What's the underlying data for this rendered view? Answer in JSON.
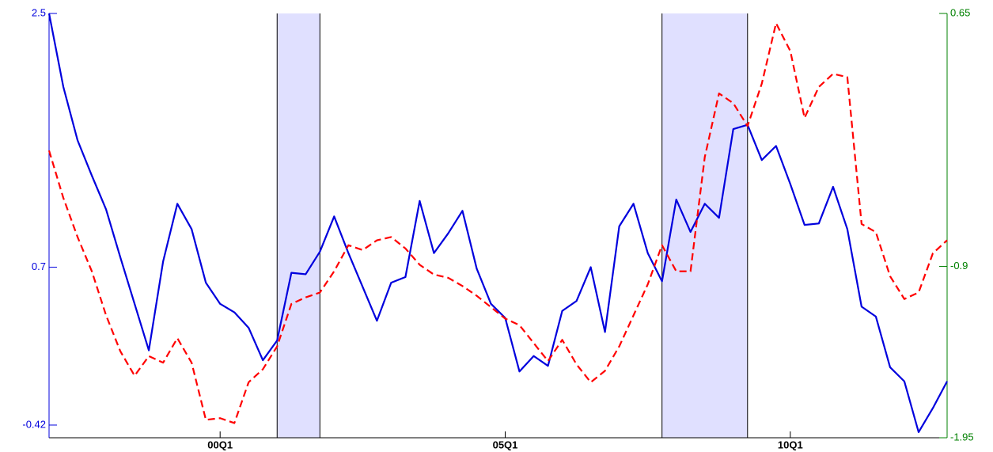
{
  "chart_data": {
    "type": "line",
    "x": [
      1997,
      1997.25,
      1997.5,
      1997.75,
      1998,
      1998.25,
      1998.5,
      1998.75,
      1999,
      1999.25,
      1999.5,
      1999.75,
      2000,
      2000.25,
      2000.5,
      2000.75,
      2001,
      2001.25,
      2001.5,
      2001.75,
      2002,
      2002.25,
      2002.5,
      2002.75,
      2003,
      2003.25,
      2003.5,
      2003.75,
      2004,
      2004.25,
      2004.5,
      2004.75,
      2005,
      2005.25,
      2005.5,
      2005.75,
      2006,
      2006.25,
      2006.5,
      2006.75,
      2007,
      2007.25,
      2007.5,
      2007.75,
      2008,
      2008.25,
      2008.5,
      2008.75,
      2009,
      2009.25,
      2009.5,
      2009.75,
      2010,
      2010.25,
      2010.5,
      2010.75,
      2011,
      2011.25,
      2011.5,
      2011.75,
      2012,
      2012.25,
      2012.5,
      2012.75
    ],
    "series": [
      {
        "color": "#0000dd",
        "axis": "y",
        "dashed": false,
        "values": [
          2.5,
          1.98,
          1.6,
          1.35,
          1.11,
          0.77,
          0.44,
          0.11,
          0.74,
          1.15,
          0.97,
          0.59,
          0.44,
          0.38,
          0.27,
          0.04,
          0.18,
          0.66,
          0.65,
          0.81,
          1.06,
          0.8,
          0.56,
          0.32,
          0.59,
          0.63,
          1.17,
          0.8,
          0.94,
          1.1,
          0.69,
          0.44,
          0.34,
          -0.04,
          0.07,
          0.0,
          0.39,
          0.46,
          0.7,
          0.24,
          0.99,
          1.15,
          0.8,
          0.6,
          1.18,
          0.95,
          1.15,
          1.05,
          1.68,
          1.71,
          1.46,
          1.56,
          1.29,
          1.0,
          1.01,
          1.27,
          0.97,
          0.42,
          0.35,
          -0.01,
          -0.11,
          -0.47,
          -0.3,
          -0.11
        ]
      },
      {
        "color": "#ff0000",
        "axis": "y2",
        "dashed": true,
        "values": [
          -0.19,
          -0.48,
          -0.72,
          -0.93,
          -1.2,
          -1.42,
          -1.57,
          -1.45,
          -1.49,
          -1.34,
          -1.49,
          -1.84,
          -1.83,
          -1.86,
          -1.61,
          -1.53,
          -1.39,
          -1.13,
          -1.09,
          -1.06,
          -0.93,
          -0.77,
          -0.8,
          -0.74,
          -0.72,
          -0.79,
          -0.89,
          -0.95,
          -0.97,
          -1.02,
          -1.08,
          -1.15,
          -1.22,
          -1.26,
          -1.37,
          -1.48,
          -1.35,
          -1.5,
          -1.61,
          -1.54,
          -1.39,
          -1.2,
          -1.01,
          -0.77,
          -0.93,
          -0.93,
          -0.23,
          0.16,
          0.1,
          -0.04,
          0.22,
          0.59,
          0.42,
          0.01,
          0.2,
          0.28,
          0.26,
          -0.64,
          -0.69,
          -0.96,
          -1.1,
          -1.06,
          -0.82,
          -0.74
        ]
      }
    ],
    "xlim": [
      1997,
      2012.75
    ],
    "xticks": [
      {
        "value": 2000,
        "label": "00Q1"
      },
      {
        "value": 2005,
        "label": "05Q1"
      },
      {
        "value": 2010,
        "label": "10Q1"
      }
    ],
    "ylim": [
      -0.51,
      2.5
    ],
    "yticks": [
      -0.42,
      0.7,
      2.5
    ],
    "ytick_color": "#0000dd",
    "y2lim": [
      -1.95,
      0.65
    ],
    "y2ticks": [
      -1.95,
      -0.9,
      0.65
    ],
    "y2tick_color": "#008000",
    "shaded": [
      [
        2001,
        2001.75
      ],
      [
        2007.75,
        2009.25
      ]
    ],
    "shade_color": "#e0e0ff"
  }
}
